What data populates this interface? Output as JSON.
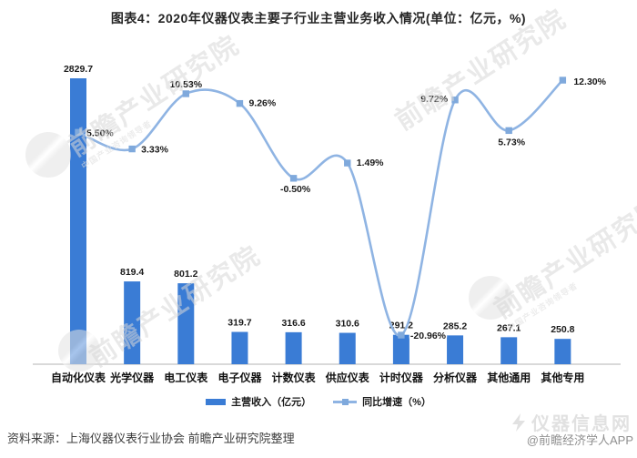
{
  "title": "图表4：2020年仪器仪表主要子行业主营业务收入情况(单位：亿元，%)",
  "chart_data": {
    "type": "bar",
    "subtype": "bar-line-combo",
    "categories": [
      "自动化仪表",
      "光学仪器",
      "电工仪表",
      "电子仪器",
      "计数仪表",
      "供应仪表",
      "计时仪器",
      "分析仪器",
      "其他通用",
      "其他专用"
    ],
    "series": [
      {
        "name": "主营收入（亿元）",
        "type": "bar",
        "color": "#3a7cd5",
        "values": [
          2829.7,
          819.4,
          801.2,
          319.7,
          316.6,
          310.6,
          291.2,
          285.2,
          267.1,
          250.8
        ],
        "labels": [
          "2829.7",
          "819.4",
          "801.2",
          "319.7",
          "316.6",
          "310.6",
          "291.2",
          "285.2",
          "267.1",
          "250.8"
        ]
      },
      {
        "name": "同比增速（%）",
        "type": "line",
        "color": "#8fb4e3",
        "marker_color": "#7fa9dc",
        "values": [
          5.5,
          3.33,
          10.53,
          9.26,
          -0.5,
          1.49,
          -20.96,
          9.72,
          5.73,
          12.3
        ],
        "labels": [
          "5.50%",
          "3.33%",
          "10.53%",
          "9.26%",
          "-0.50%",
          "1.49%",
          "-20.96%",
          "9.72%",
          "5.73%",
          "12.30%"
        ]
      }
    ],
    "legend_position": "bottom",
    "gridlines": false,
    "value_axes_visible": false,
    "bar_axis_min": 0
  },
  "legend": {
    "bar": "主营收入（亿元）",
    "line": "同比增速（%）"
  },
  "footer": {
    "source": "资料来源：上海仪器仪表行业协会 前瞻产业研究院整理",
    "credit": "@前瞻经济学人APP"
  },
  "watermarks": {
    "brand": "前瞻产业研究院",
    "brand_sub": "中国产业咨询领导者",
    "site": "仪器信息网"
  }
}
